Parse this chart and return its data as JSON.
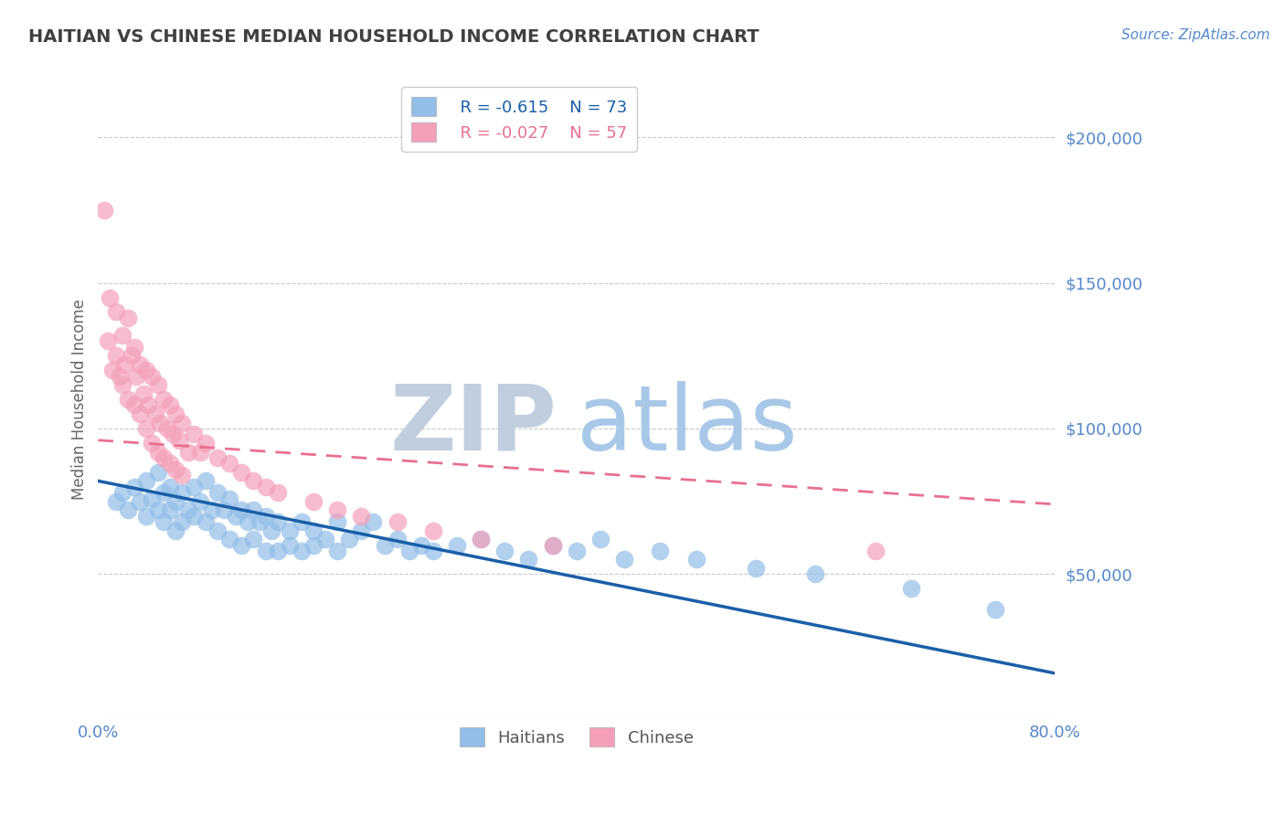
{
  "title": "HAITIAN VS CHINESE MEDIAN HOUSEHOLD INCOME CORRELATION CHART",
  "source_text": "Source: ZipAtlas.com",
  "ylabel": "Median Household Income",
  "xlim": [
    0.0,
    0.8
  ],
  "ylim": [
    0,
    220000
  ],
  "yticks": [
    0,
    50000,
    100000,
    150000,
    200000
  ],
  "ytick_labels": [
    "",
    "$50,000",
    "$100,000",
    "$150,000",
    "$200,000"
  ],
  "legend_r1": "R = -0.615",
  "legend_n1": "N = 73",
  "legend_r2": "R = -0.027",
  "legend_n2": "N = 57",
  "haitian_color": "#92BEE8",
  "chinese_color": "#F4A0B8",
  "haitian_line_color": "#1A5FA8",
  "chinese_line_color": "#E87090",
  "watermark_zip": "ZIP",
  "watermark_atlas": "atlas",
  "watermark_color_zip": "#C0CEDE",
  "watermark_color_atlas": "#A8C8E8",
  "background_color": "#FFFFFF",
  "grid_color": "#C8C8C8",
  "tick_color": "#5588CC",
  "title_color": "#404040",
  "haitian_x": [
    0.015,
    0.02,
    0.025,
    0.03,
    0.035,
    0.04,
    0.04,
    0.045,
    0.05,
    0.05,
    0.055,
    0.055,
    0.06,
    0.06,
    0.065,
    0.065,
    0.07,
    0.07,
    0.075,
    0.08,
    0.08,
    0.085,
    0.09,
    0.09,
    0.095,
    0.1,
    0.1,
    0.105,
    0.11,
    0.11,
    0.115,
    0.12,
    0.12,
    0.125,
    0.13,
    0.13,
    0.135,
    0.14,
    0.14,
    0.145,
    0.15,
    0.15,
    0.16,
    0.16,
    0.17,
    0.17,
    0.18,
    0.18,
    0.19,
    0.2,
    0.2,
    0.21,
    0.22,
    0.23,
    0.24,
    0.25,
    0.26,
    0.27,
    0.28,
    0.3,
    0.32,
    0.34,
    0.36,
    0.38,
    0.4,
    0.42,
    0.44,
    0.47,
    0.5,
    0.55,
    0.6,
    0.68,
    0.75
  ],
  "haitian_y": [
    75000,
    78000,
    72000,
    80000,
    75000,
    82000,
    70000,
    76000,
    85000,
    72000,
    78000,
    68000,
    80000,
    72000,
    75000,
    65000,
    78000,
    68000,
    72000,
    80000,
    70000,
    75000,
    82000,
    68000,
    72000,
    78000,
    65000,
    72000,
    76000,
    62000,
    70000,
    72000,
    60000,
    68000,
    72000,
    62000,
    68000,
    70000,
    58000,
    65000,
    68000,
    58000,
    65000,
    60000,
    68000,
    58000,
    65000,
    60000,
    62000,
    68000,
    58000,
    62000,
    65000,
    68000,
    60000,
    62000,
    58000,
    60000,
    58000,
    60000,
    62000,
    58000,
    55000,
    60000,
    58000,
    62000,
    55000,
    58000,
    55000,
    52000,
    50000,
    45000,
    38000
  ],
  "chinese_x": [
    0.005,
    0.008,
    0.01,
    0.012,
    0.015,
    0.015,
    0.018,
    0.02,
    0.02,
    0.022,
    0.025,
    0.025,
    0.028,
    0.03,
    0.03,
    0.032,
    0.035,
    0.035,
    0.038,
    0.04,
    0.04,
    0.042,
    0.045,
    0.045,
    0.048,
    0.05,
    0.05,
    0.052,
    0.055,
    0.055,
    0.058,
    0.06,
    0.06,
    0.062,
    0.065,
    0.065,
    0.068,
    0.07,
    0.07,
    0.075,
    0.08,
    0.085,
    0.09,
    0.1,
    0.11,
    0.12,
    0.13,
    0.14,
    0.15,
    0.18,
    0.2,
    0.22,
    0.25,
    0.28,
    0.32,
    0.38,
    0.65
  ],
  "chinese_y": [
    175000,
    130000,
    145000,
    120000,
    140000,
    125000,
    118000,
    132000,
    115000,
    122000,
    138000,
    110000,
    125000,
    128000,
    108000,
    118000,
    122000,
    105000,
    112000,
    120000,
    100000,
    108000,
    118000,
    95000,
    105000,
    115000,
    92000,
    102000,
    110000,
    90000,
    100000,
    108000,
    88000,
    98000,
    105000,
    86000,
    96000,
    102000,
    84000,
    92000,
    98000,
    92000,
    95000,
    90000,
    88000,
    85000,
    82000,
    80000,
    78000,
    75000,
    72000,
    70000,
    68000,
    65000,
    62000,
    60000,
    58000
  ]
}
